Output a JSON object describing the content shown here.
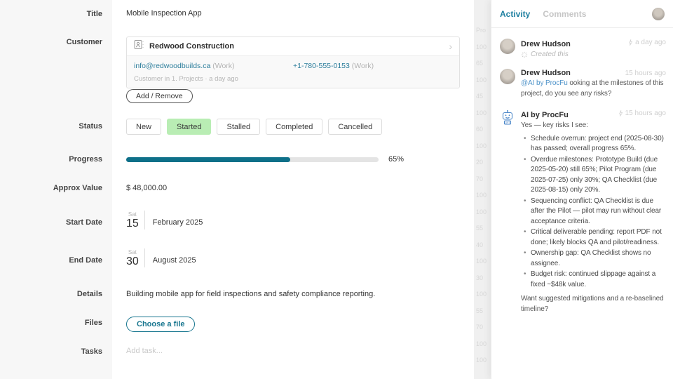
{
  "accent": {
    "teal": "#1d7fa0",
    "progress_fill": "#0e7089",
    "status_green": "#b9edb4",
    "link_blue": "#4e93c9"
  },
  "form": {
    "title": {
      "label": "Title",
      "value": "Mobile Inspection App"
    },
    "customer": {
      "label": "Customer",
      "name": "Redwood Construction",
      "email": "info@redwoodbuilds.ca",
      "email_suffix": "(Work)",
      "phone": "+1-780-555-0153",
      "phone_suffix": "(Work)",
      "meta": "Customer in 1. Projects · a day ago",
      "add_remove_label": "Add / Remove"
    },
    "status": {
      "label": "Status",
      "options": [
        "New",
        "Started",
        "Stalled",
        "Completed",
        "Cancelled"
      ],
      "selected": "Started"
    },
    "progress": {
      "label": "Progress",
      "percent": 65,
      "text": "65%"
    },
    "approx_value": {
      "label": "Approx Value",
      "value": "$ 48,000.00"
    },
    "start_date": {
      "label": "Start Date",
      "weekday": "Sat",
      "day": "15",
      "month_year": "February 2025"
    },
    "end_date": {
      "label": "End Date",
      "weekday": "Sat",
      "day": "30",
      "month_year": "August 2025"
    },
    "details": {
      "label": "Details",
      "value": "Building mobile app for field inspections and safety compliance reporting."
    },
    "files": {
      "label": "Files",
      "button_label": "Choose a file"
    },
    "tasks": {
      "label": "Tasks",
      "placeholder": "Add task..."
    }
  },
  "background_list": {
    "values": [
      "Pro",
      "100",
      "65",
      "100",
      "45",
      "100",
      "60",
      "100",
      "20",
      "70",
      "100",
      "100",
      "55",
      "40",
      "100",
      "30",
      "100",
      "55",
      "70",
      "100",
      "100"
    ]
  },
  "activity": {
    "tabs": [
      {
        "label": "Activity"
      },
      {
        "label": "Comments"
      }
    ],
    "items": [
      {
        "author": "Drew Hudson",
        "action": "Created this",
        "timestamp": "a day ago"
      },
      {
        "author": "Drew Hudson",
        "timestamp": "15 hours ago",
        "message_link": "@AI by ProcFu",
        "message_rest": " ooking at the milestones of this project, do you see any risks?"
      },
      {
        "author": "AI by ProcFu",
        "timestamp": "15 hours ago",
        "intro": "Yes — key risks I see:",
        "bullets": [
          "Schedule overrun: project end (2025-08-30) has passed; overall progress 65%.",
          "Overdue milestones: Prototype Build (due 2025-05-20) still 65%; Pilot Program (due 2025-07-25) only 30%; QA Checklist (due 2025-08-15) only 20%.",
          "Sequencing conflict: QA Checklist is due after the Pilot — pilot may run without clear acceptance criteria.",
          "Critical deliverable pending: report PDF not done; likely blocks QA and pilot/readiness.",
          "Ownership gap: QA Checklist shows no assignee.",
          "Budget risk: continued slippage against a fixed ~$48k value."
        ],
        "outro": "Want suggested mitigations and a re-baselined timeline?"
      }
    ]
  }
}
